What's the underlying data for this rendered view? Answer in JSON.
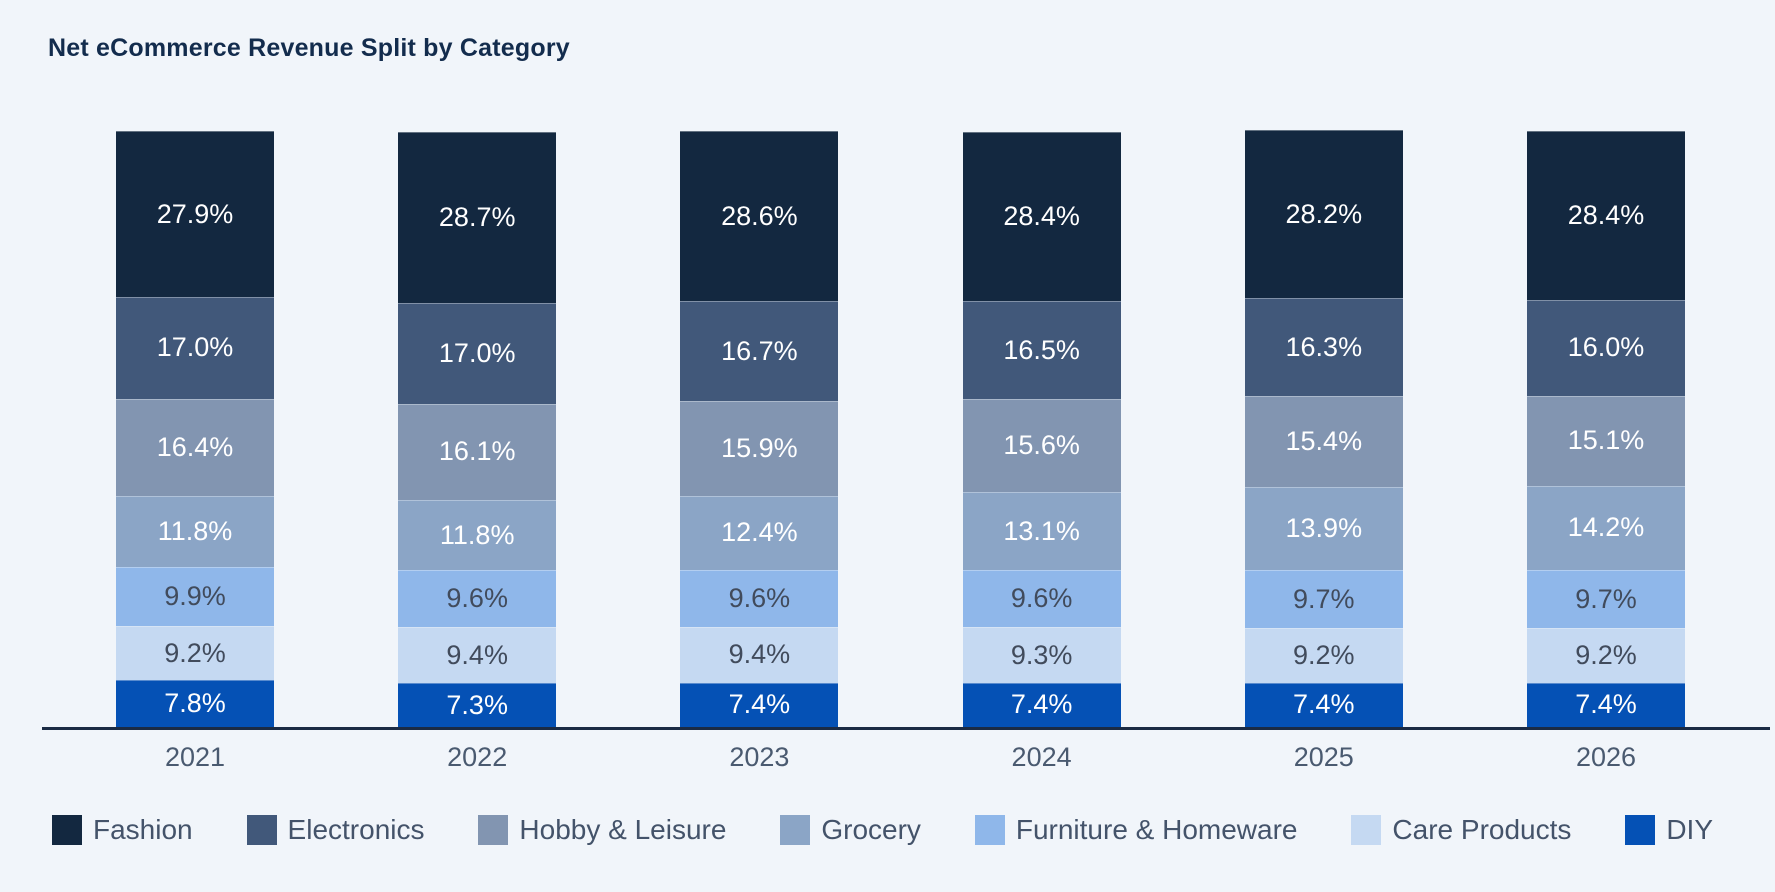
{
  "page": {
    "background": "#f1f5fa"
  },
  "chart_data": {
    "type": "bar",
    "variant": "stacked-100-percent-column",
    "title": "Net eCommerce Revenue Split by Category",
    "categories": [
      "2021",
      "2022",
      "2023",
      "2024",
      "2025",
      "2026"
    ],
    "xlabel": "",
    "ylabel": "",
    "ylim": [
      0,
      100
    ],
    "value_suffix": "%",
    "grid": false,
    "legend_position": "bottom",
    "axis_color": "#1b2b44",
    "tick_label_color": "#4a5a70",
    "legend_label_color": "#44536a",
    "title_color": "#132c4d",
    "series": [
      {
        "name": "Fashion",
        "color": "#132840",
        "label_color": "#ffffff",
        "values": [
          27.9,
          28.7,
          28.6,
          28.4,
          28.2,
          28.4
        ],
        "labels": [
          "27.9%",
          "28.7%",
          "28.6%",
          "28.4%",
          "28.2%",
          "28.4%"
        ]
      },
      {
        "name": "Electronics",
        "color": "#41587a",
        "label_color": "#ffffff",
        "values": [
          17.0,
          17.0,
          16.7,
          16.5,
          16.3,
          16.0
        ],
        "labels": [
          "17.0%",
          "17.0%",
          "16.7%",
          "16.5%",
          "16.3%",
          "16.0%"
        ]
      },
      {
        "name": "Hobby & Leisure",
        "color": "#8295b1",
        "label_color": "#ffffff",
        "values": [
          16.4,
          16.1,
          15.9,
          15.6,
          15.4,
          15.1
        ],
        "labels": [
          "16.4%",
          "16.1%",
          "15.9%",
          "15.6%",
          "15.4%",
          "15.1%"
        ]
      },
      {
        "name": "Grocery",
        "color": "#8ba5c6",
        "label_color": "#ffffff",
        "values": [
          11.8,
          11.8,
          12.4,
          13.1,
          13.9,
          14.2
        ],
        "labels": [
          "11.8%",
          "11.8%",
          "12.4%",
          "13.1%",
          "13.9%",
          "14.2%"
        ]
      },
      {
        "name": "Furniture & Homeware",
        "color": "#8fb7ea",
        "label_color": "#414b5c",
        "values": [
          9.9,
          9.6,
          9.6,
          9.6,
          9.7,
          9.7
        ],
        "labels": [
          "9.9%",
          "9.6%",
          "9.6%",
          "9.6%",
          "9.7%",
          "9.7%"
        ]
      },
      {
        "name": "Care Products",
        "color": "#c5d9f2",
        "label_color": "#414b5c",
        "values": [
          9.2,
          9.4,
          9.4,
          9.3,
          9.2,
          9.2
        ],
        "labels": [
          "9.2%",
          "9.4%",
          "9.4%",
          "9.3%",
          "9.2%",
          "9.2%"
        ]
      },
      {
        "name": "DIY",
        "color": "#0551b5",
        "label_color": "#ffffff",
        "values": [
          7.8,
          7.3,
          7.4,
          7.4,
          7.4,
          7.4
        ],
        "labels": [
          "7.8%",
          "7.3%",
          "7.4%",
          "7.4%",
          "7.4%",
          "7.4%"
        ]
      }
    ]
  }
}
